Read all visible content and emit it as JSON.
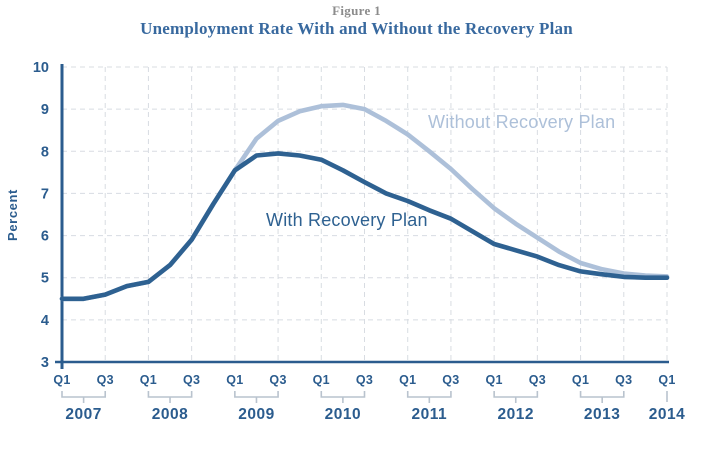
{
  "figure": {
    "label": "Figure 1",
    "title": "Unemployment Rate With and Without the Recovery Plan"
  },
  "chart_data": {
    "type": "line",
    "title": "Unemployment Rate With and Without the Recovery Plan",
    "xlabel": "",
    "ylabel": "Percent",
    "ylim": [
      3,
      10
    ],
    "y_ticks": [
      3,
      4,
      5,
      6,
      7,
      8,
      9,
      10
    ],
    "grid": "dashed, horizontal at each percent and vertical at each Q1/Q3",
    "legend_position": "inline labels on lines",
    "x_tick_labels": [
      "Q1",
      "Q3"
    ],
    "years": [
      "2007",
      "2008",
      "2009",
      "2010",
      "2011",
      "2012",
      "2013",
      "2014"
    ],
    "x_categories": [
      "2007 Q1",
      "2007 Q2",
      "2007 Q3",
      "2007 Q4",
      "2008 Q1",
      "2008 Q2",
      "2008 Q3",
      "2008 Q4",
      "2009 Q1",
      "2009 Q2",
      "2009 Q3",
      "2009 Q4",
      "2010 Q1",
      "2010 Q2",
      "2010 Q3",
      "2010 Q4",
      "2011 Q1",
      "2011 Q2",
      "2011 Q3",
      "2011 Q4",
      "2012 Q1",
      "2012 Q2",
      "2012 Q3",
      "2012 Q4",
      "2013 Q1",
      "2013 Q2",
      "2013 Q3",
      "2013 Q4",
      "2014 Q1"
    ],
    "series": [
      {
        "name": "Without Recovery Plan",
        "color": "#adc0d9",
        "values": [
          4.5,
          4.5,
          4.6,
          4.8,
          4.9,
          5.3,
          5.9,
          6.75,
          7.55,
          8.3,
          8.72,
          8.95,
          9.07,
          9.1,
          9.0,
          8.72,
          8.4,
          8.0,
          7.58,
          7.1,
          6.65,
          6.28,
          5.95,
          5.62,
          5.35,
          5.2,
          5.1,
          5.05,
          5.03
        ]
      },
      {
        "name": "With Recovery Plan",
        "color": "#2e6191",
        "values": [
          4.5,
          4.5,
          4.6,
          4.8,
          4.9,
          5.3,
          5.9,
          6.75,
          7.55,
          7.9,
          7.95,
          7.9,
          7.8,
          7.55,
          7.27,
          7.0,
          6.82,
          6.6,
          6.4,
          6.1,
          5.8,
          5.65,
          5.5,
          5.3,
          5.15,
          5.08,
          5.02,
          5.0,
          5.0
        ]
      }
    ],
    "annotations": [
      {
        "text": "Without Recovery Plan",
        "series": "Without Recovery Plan"
      },
      {
        "text": "With Recovery Plan",
        "series": "With Recovery Plan"
      }
    ]
  },
  "colors": {
    "line_dark_blue": "#2e6191",
    "line_light_blue": "#adc0d9",
    "axis_blue": "#2b5c8e",
    "grid_gray": "#d8dce2",
    "bracket_gray": "#b9c3ce",
    "title_blue": "#38699f",
    "figure_label_gray": "#8c8c8c",
    "background": "#ffffff"
  }
}
